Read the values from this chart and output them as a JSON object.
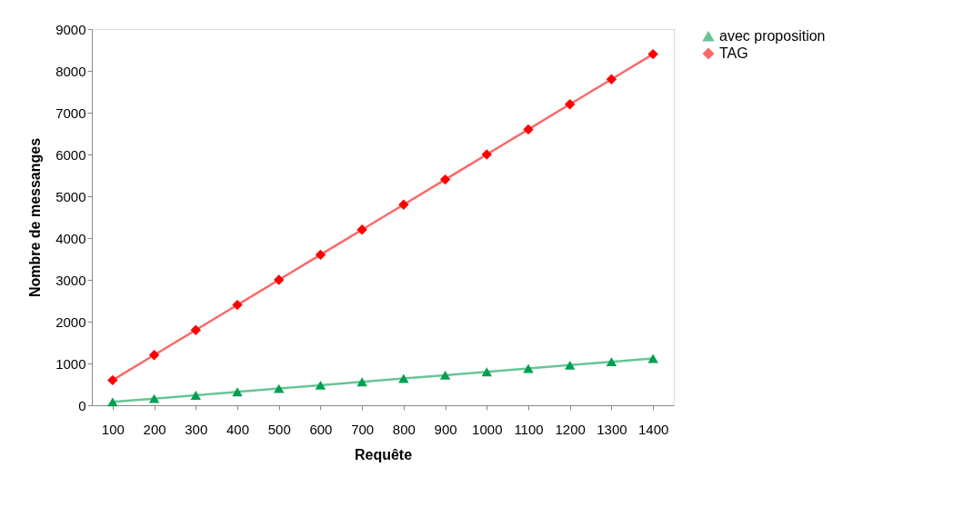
{
  "chart_data": {
    "type": "line",
    "xlabel": "Requête",
    "ylabel": "Nombre  de messanges",
    "categories": [
      "100",
      "200",
      "300",
      "400",
      "500",
      "600",
      "700",
      "800",
      "900",
      "1000",
      "1100",
      "1200",
      "1300",
      "1400"
    ],
    "series": [
      {
        "name": "avec proposition",
        "color": "#00a050",
        "marker": "triangle",
        "values": [
          80,
          160,
          240,
          320,
          400,
          480,
          560,
          640,
          720,
          800,
          880,
          960,
          1040,
          1120
        ]
      },
      {
        "name": "TAG",
        "color": "#ff0000",
        "marker": "diamond",
        "values": [
          600,
          1200,
          1800,
          2400,
          3000,
          3600,
          4200,
          4800,
          5400,
          6000,
          6600,
          7200,
          7800,
          8400
        ]
      }
    ],
    "ylim": [
      0,
      9000
    ],
    "yticks": [
      0,
      1000,
      2000,
      3000,
      4000,
      5000,
      6000,
      7000,
      8000,
      9000
    ],
    "grid": false,
    "legend": "right",
    "line_style": "solid"
  }
}
